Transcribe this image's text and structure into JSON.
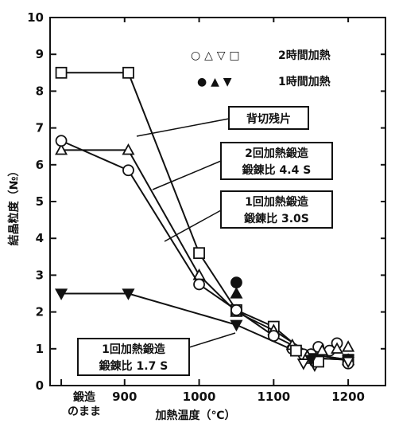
{
  "chart_data": {
    "type": "line",
    "title": "",
    "xlabel": "加熱温度（℃）",
    "ylabel": "結晶粒度（№）",
    "xlim": [
      800,
      1250
    ],
    "ylim": [
      0,
      10
    ],
    "x_ticks": [
      "1000",
      "1100",
      "1200",
      "900"
    ],
    "x_tick_values": [
      1000,
      1100,
      1200,
      900
    ],
    "x_forged_label_line1": "鍛造",
    "x_forged_label_line2": "のまま",
    "y_ticks": [
      "0",
      "1",
      "2",
      "3",
      "4",
      "5",
      "6",
      "7",
      "8",
      "9",
      "10"
    ],
    "legend": [
      {
        "markers": "○ △ ▽ □",
        "text": "2時間加熱"
      },
      {
        "markers": "● ▲ ▼",
        "text": "1時間加熱"
      }
    ],
    "series": [
      {
        "name": "背切残片",
        "marker": "square",
        "x": [
          815,
          905,
          1000,
          1050,
          1100,
          1150,
          1200
        ],
        "y": [
          8.5,
          8.5,
          3.6,
          2.05,
          1.6,
          0.75,
          0.7
        ]
      },
      {
        "name": "2回加熱鍛造 鍛錬比4.4S",
        "marker": "triangle",
        "x": [
          815,
          905,
          1000,
          1050,
          1100,
          1150,
          1200
        ],
        "y": [
          6.4,
          6.4,
          3.0,
          2.0,
          1.5,
          0.85,
          0.7
        ]
      },
      {
        "name": "1回加熱鍛造 鍛錬比3.0S",
        "marker": "circle",
        "x": [
          815,
          905,
          1000,
          1050,
          1100,
          1150,
          1200
        ],
        "y": [
          6.65,
          5.85,
          2.75,
          2.05,
          1.35,
          0.85,
          0.7
        ]
      },
      {
        "name": "1回加熱鍛造 鍛錬比1.7S",
        "marker": "triangle-down-filled",
        "x": [
          815,
          905,
          1050,
          1150,
          1200
        ],
        "y": [
          2.5,
          2.5,
          1.65,
          0.75,
          0.7
        ]
      }
    ],
    "scatter_points": [
      {
        "marker": "circle",
        "x": 1125,
        "y": 1.0
      },
      {
        "marker": "circle",
        "x": 1140,
        "y": 0.85
      },
      {
        "marker": "circle",
        "x": 1160,
        "y": 1.05
      },
      {
        "marker": "circle",
        "x": 1175,
        "y": 0.95
      },
      {
        "marker": "circle",
        "x": 1185,
        "y": 1.15
      },
      {
        "marker": "circle",
        "x": 1200,
        "y": 0.6
      },
      {
        "marker": "triangle",
        "x": 1125,
        "y": 1.1
      },
      {
        "marker": "triangle",
        "x": 1145,
        "y": 0.8
      },
      {
        "marker": "triangle",
        "x": 1165,
        "y": 0.95
      },
      {
        "marker": "triangle",
        "x": 1185,
        "y": 1.0
      },
      {
        "marker": "triangle",
        "x": 1200,
        "y": 1.05
      },
      {
        "marker": "triangle-down",
        "x": 1140,
        "y": 0.6
      },
      {
        "marker": "triangle-down",
        "x": 1155,
        "y": 0.55
      },
      {
        "marker": "triangle-down",
        "x": 1200,
        "y": 0.65
      },
      {
        "marker": "square",
        "x": 1130,
        "y": 0.95
      },
      {
        "marker": "square",
        "x": 1160,
        "y": 0.65
      },
      {
        "marker": "circle-filled",
        "x": 1050,
        "y": 2.8
      },
      {
        "marker": "triangle-filled",
        "x": 1050,
        "y": 2.5
      },
      {
        "marker": "triangle-down-filled",
        "x": 1150,
        "y": 0.7
      }
    ],
    "callouts": [
      {
        "lines": [
          "背切残片"
        ]
      },
      {
        "lines": [
          "2回加熱鍛造",
          "鍛錬比 4.4 S"
        ]
      },
      {
        "lines": [
          "1回加熱鍛造",
          "鍛錬比 3.0S"
        ]
      },
      {
        "lines": [
          "1回加熱鍛造",
          "鍛錬比 1.7 S"
        ]
      }
    ],
    "grid": false
  }
}
